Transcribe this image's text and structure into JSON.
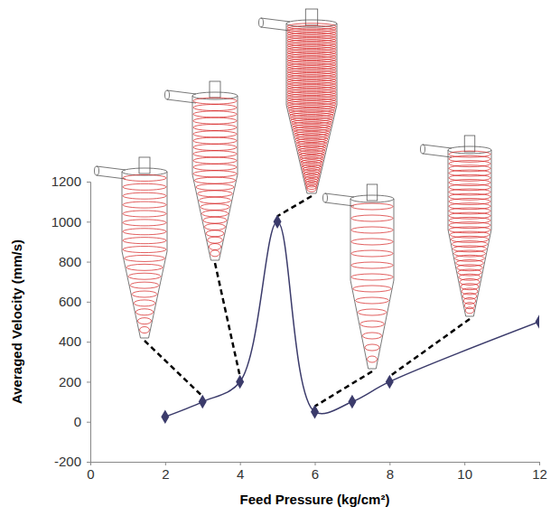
{
  "chart_data": {
    "type": "line",
    "x_label": "Feed Pressure (kg/cm²)",
    "y_label": "Averaged Velocity (mm/s)",
    "x": [
      2,
      3,
      4,
      5,
      6,
      7,
      8,
      12
    ],
    "values": [
      25,
      100,
      200,
      1000,
      50,
      100,
      200,
      500
    ],
    "color": "#3b3b6b",
    "marker": "diamond",
    "line_style": "smooth",
    "xlim": [
      0,
      12
    ],
    "xticks": [
      0,
      2,
      4,
      6,
      8,
      10,
      12
    ],
    "ylim": [
      -200,
      1200
    ],
    "yticks": [
      -200,
      0,
      200,
      400,
      600,
      800,
      1000,
      1200
    ],
    "grid": false
  }
}
